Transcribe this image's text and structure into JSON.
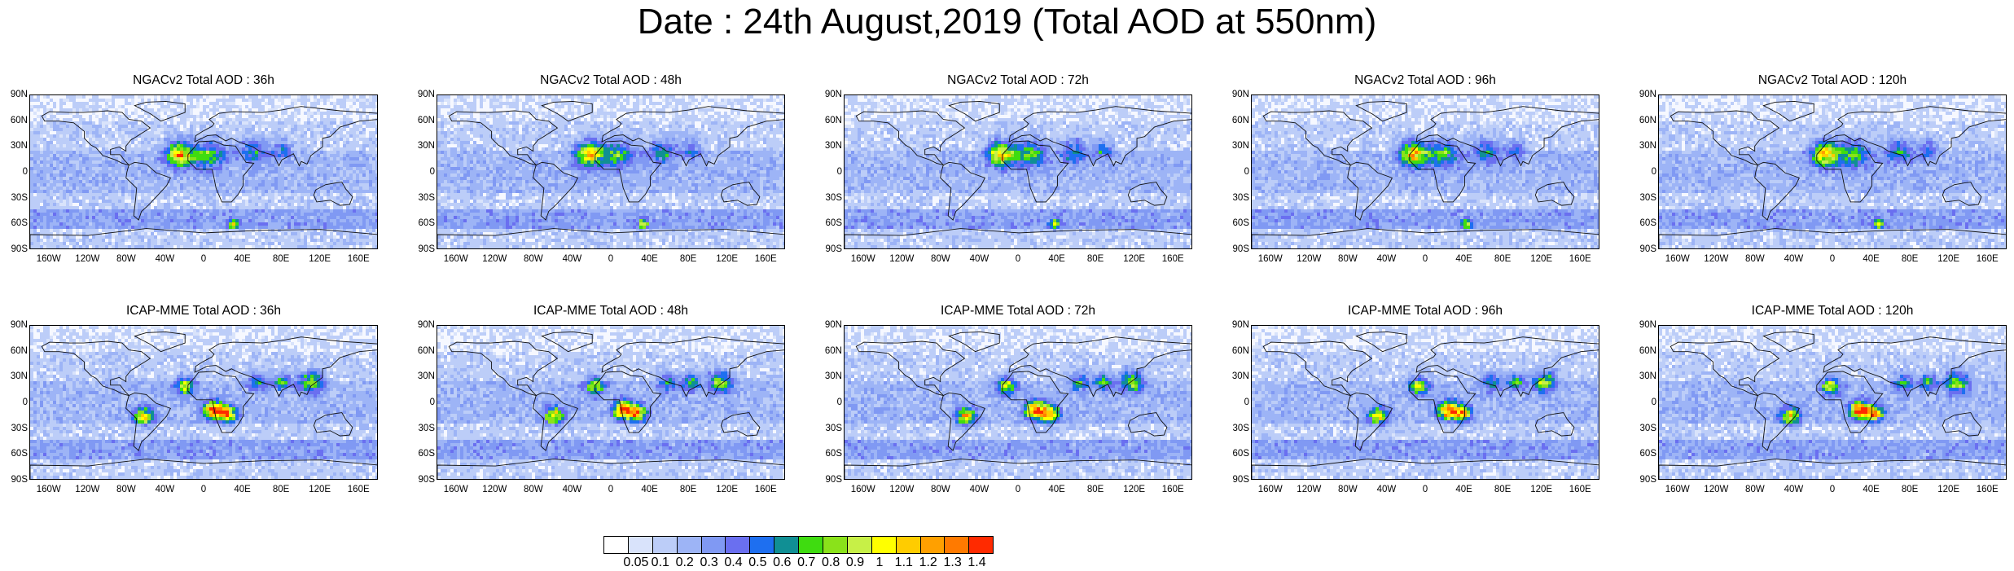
{
  "title": "Date : 24th August,2019 (Total AOD at 550nm)",
  "panels": [
    {
      "title": "NGACv2 Total AOD : 36h",
      "model": "NGAC",
      "hour": 36
    },
    {
      "title": "NGACv2 Total AOD : 48h",
      "model": "NGAC",
      "hour": 48
    },
    {
      "title": "NGACv2 Total AOD : 72h",
      "model": "NGAC",
      "hour": 72
    },
    {
      "title": "NGACv2 Total AOD : 96h",
      "model": "NGAC",
      "hour": 96
    },
    {
      "title": "NGACv2 Total AOD : 120h",
      "model": "NGAC",
      "hour": 120
    },
    {
      "title": "ICAP-MME Total AOD : 36h",
      "model": "ICAP",
      "hour": 36
    },
    {
      "title": "ICAP-MME Total AOD : 48h",
      "model": "ICAP",
      "hour": 48
    },
    {
      "title": "ICAP-MME Total AOD : 72h",
      "model": "ICAP",
      "hour": 72
    },
    {
      "title": "ICAP-MME Total AOD : 96h",
      "model": "ICAP",
      "hour": 96
    },
    {
      "title": "ICAP-MME Total AOD : 120h",
      "model": "ICAP",
      "hour": 120
    }
  ],
  "lat_ticks": [
    "90N",
    "60N",
    "30N",
    "0",
    "30S",
    "60S",
    "90S"
  ],
  "lon_ticks": [
    "160W",
    "120W",
    "80W",
    "40W",
    "0",
    "40E",
    "80E",
    "120E",
    "160E"
  ],
  "colorbar": {
    "labels": [
      "0.05",
      "0.1",
      "0.2",
      "0.3",
      "0.4",
      "0.5",
      "0.6",
      "0.7",
      "0.8",
      "0.9",
      "1",
      "1.1",
      "1.2",
      "1.3",
      "1.4"
    ],
    "colors": [
      "#ffffff",
      "#d9e3fb",
      "#bccdf8",
      "#9db4f6",
      "#8099f3",
      "#6a6ff0",
      "#1e6ff0",
      "#108f94",
      "#3fdc10",
      "#8ae21a",
      "#c7f047",
      "#ffff00",
      "#ffcc00",
      "#ffa000",
      "#ff7a00",
      "#ff2a00"
    ]
  }
}
